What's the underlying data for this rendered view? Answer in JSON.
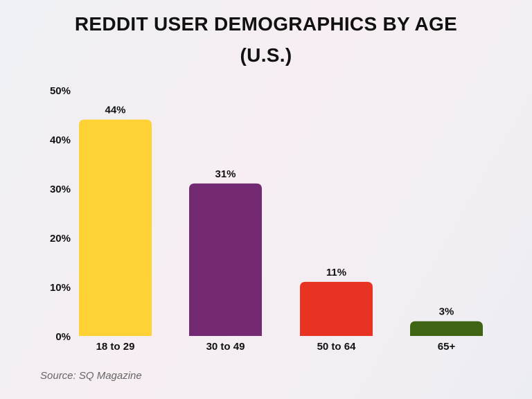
{
  "chart_data": {
    "type": "bar",
    "title_lines": [
      "REDDIT USER DEMOGRAPHICS BY AGE",
      "(U.S.)"
    ],
    "categories": [
      "18 to 29",
      "30 to 49",
      "50 to 64",
      "65+"
    ],
    "values": [
      44,
      31,
      11,
      3
    ],
    "data_labels": [
      "44%",
      "31%",
      "11%",
      "3%"
    ],
    "colors": [
      "#fed234",
      "#732a72",
      "#e83222",
      "#3f6414"
    ],
    "ylim": [
      0,
      50
    ],
    "yticks": [
      0,
      10,
      20,
      30,
      40,
      50
    ],
    "ytick_labels": [
      "0%",
      "10%",
      "20%",
      "30%",
      "40%",
      "50%"
    ],
    "grid": false,
    "xlabel": "",
    "ylabel": ""
  },
  "source": "Source: SQ Magazine"
}
